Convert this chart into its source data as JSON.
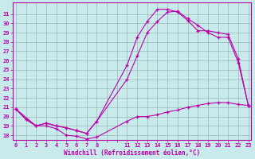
{
  "xlabel": "Windchill (Refroidissement éolien,°C)",
  "bg_color": "#c8eaea",
  "grid_color": "#9bbaba",
  "line_color": "#bb00aa",
  "ylim": [
    17.5,
    32.2
  ],
  "ytick_labels": [
    "18",
    "19",
    "20",
    "21",
    "22",
    "23",
    "24",
    "25",
    "26",
    "27",
    "28",
    "29",
    "30",
    "31"
  ],
  "ytick_vals": [
    18,
    19,
    20,
    21,
    22,
    23,
    24,
    25,
    26,
    27,
    28,
    29,
    30,
    31
  ],
  "xtick_labels": [
    "0",
    "1",
    "2",
    "3",
    "4",
    "5",
    "6",
    "7",
    "8",
    "",
    "",
    "11",
    "12",
    "13",
    "14",
    "15",
    "16",
    "17",
    "18",
    "19",
    "20",
    "21",
    "22",
    "23"
  ],
  "xvals": [
    0,
    1,
    2,
    3,
    4,
    5,
    6,
    7,
    8,
    9,
    10,
    11,
    12,
    13,
    14,
    15,
    16,
    17,
    18,
    19,
    20,
    21,
    22,
    23
  ],
  "xlim": [
    -0.3,
    23.3
  ],
  "series": [
    {
      "x": [
        0,
        1,
        2,
        3,
        4,
        5,
        6,
        7,
        8,
        11,
        12,
        13,
        14,
        15,
        16,
        17,
        18,
        19,
        20,
        21,
        22,
        23
      ],
      "y": [
        20.8,
        19.7,
        19.0,
        19.0,
        18.7,
        18.0,
        17.9,
        17.6,
        17.8,
        19.5,
        20.0,
        20.0,
        20.2,
        20.5,
        20.7,
        21.0,
        21.2,
        21.4,
        21.5,
        21.5,
        21.3,
        21.2
      ]
    },
    {
      "x": [
        0,
        1,
        2,
        3,
        4,
        5,
        6,
        7,
        8,
        11,
        12,
        13,
        14,
        15,
        16,
        17,
        18,
        19,
        20,
        21,
        22,
        23
      ],
      "y": [
        20.8,
        19.7,
        19.0,
        19.3,
        19.0,
        18.8,
        18.5,
        18.2,
        19.5,
        24.0,
        26.5,
        29.0,
        30.2,
        31.2,
        31.3,
        30.5,
        29.8,
        29.0,
        28.5,
        28.5,
        25.8,
        21.2
      ]
    },
    {
      "x": [
        0,
        2,
        3,
        4,
        5,
        6,
        7,
        8,
        11,
        12,
        13,
        14,
        15,
        16,
        17,
        18,
        19,
        20,
        21,
        22,
        23
      ],
      "y": [
        20.8,
        19.0,
        19.3,
        19.0,
        18.8,
        18.5,
        18.2,
        19.5,
        25.5,
        28.5,
        30.2,
        31.5,
        31.5,
        31.2,
        30.3,
        29.2,
        29.2,
        29.0,
        28.8,
        26.2,
        21.2
      ]
    }
  ]
}
